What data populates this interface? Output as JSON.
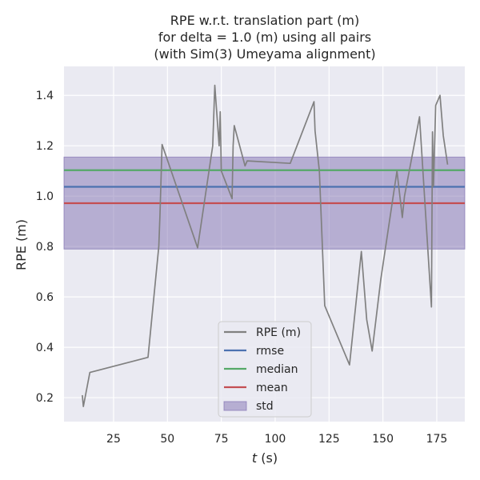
{
  "chart_data": {
    "type": "line",
    "title_lines": [
      "RPE w.r.t. translation part (m)",
      "for delta = 1.0 (m) using all pairs",
      "(with Sim(3) Umeyama alignment)"
    ],
    "xlabel_var": "t",
    "xlabel_unit": " (s)",
    "ylabel": "RPE (m)",
    "xlim": [
      2,
      188
    ],
    "ylim": [
      0.105,
      1.515
    ],
    "xticks": [
      25,
      50,
      75,
      100,
      125,
      150,
      175
    ],
    "yticks": [
      0.2,
      0.4,
      0.6,
      0.8,
      1.0,
      1.2,
      1.4
    ],
    "grid": true,
    "legend_position": "lower-center",
    "series": [
      {
        "name": "RPE (m)",
        "color": "#808080",
        "x": [
          10.5,
          11,
          14,
          41,
          46,
          46.5,
          47.5,
          64,
          71,
          72,
          74,
          74.5,
          75,
          80,
          80.5,
          81,
          86,
          87,
          107,
          118,
          118.5,
          120.5,
          123,
          134.5,
          140,
          142.5,
          145,
          149,
          156.5,
          159,
          160,
          167,
          172.5,
          173,
          173.5,
          174.5,
          176.5,
          178,
          180
        ],
        "y": [
          0.21,
          0.165,
          0.3,
          0.36,
          0.8,
          0.92,
          1.205,
          0.795,
          1.2,
          1.44,
          1.2,
          1.335,
          1.1,
          0.99,
          1.2,
          1.28,
          1.12,
          1.14,
          1.13,
          1.375,
          1.26,
          1.1,
          0.565,
          0.33,
          0.78,
          0.51,
          0.385,
          0.67,
          1.1,
          0.915,
          1.0,
          1.315,
          0.56,
          1.255,
          1.04,
          1.36,
          1.4,
          1.24,
          1.125
        ]
      }
    ],
    "stats": {
      "rmse": {
        "label": "rmse",
        "value": 1.037,
        "color": "#4c72b0"
      },
      "median": {
        "label": "median",
        "value": 1.103,
        "color": "#55a868"
      },
      "mean": {
        "label": "mean",
        "value": 0.972,
        "color": "#c44e52"
      },
      "std": {
        "label": "std",
        "low": 0.79,
        "high": 1.155,
        "color": "#8172b2"
      }
    },
    "legend": [
      "RPE (m)",
      "rmse",
      "median",
      "mean",
      "std"
    ],
    "plot_background": "#eaeaf2",
    "grid_color": "#ffffff"
  }
}
